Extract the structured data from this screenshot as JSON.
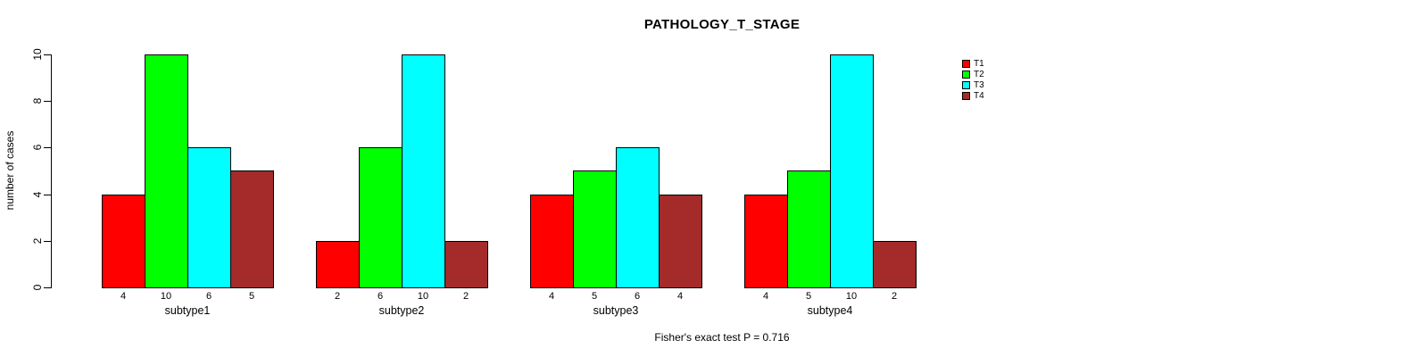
{
  "title": "PATHOLOGY_T_STAGE",
  "footer": "Fisher's exact test P = 0.716",
  "chart_data": {
    "type": "bar",
    "title": "PATHOLOGY_T_STAGE",
    "xlabel": "",
    "ylabel": "number of cases",
    "ylim": [
      0,
      10
    ],
    "yticks": [
      0,
      2,
      4,
      6,
      8,
      10
    ],
    "grid": false,
    "legend_position": "top-right",
    "categories": [
      "subtype1",
      "subtype2",
      "subtype3",
      "subtype4"
    ],
    "series": [
      {
        "name": "T1",
        "color": "#FF0000",
        "values": [
          4,
          2,
          4,
          4
        ]
      },
      {
        "name": "T2",
        "color": "#00FF00",
        "values": [
          10,
          6,
          5,
          5
        ]
      },
      {
        "name": "T3",
        "color": "#00FFFF",
        "values": [
          6,
          10,
          6,
          10
        ]
      },
      {
        "name": "T4",
        "color": "#A52A2A",
        "values": [
          5,
          2,
          4,
          2
        ]
      }
    ],
    "bar_value_labels": [
      [
        4,
        10,
        6,
        5
      ],
      [
        2,
        6,
        10,
        2
      ],
      [
        4,
        5,
        6,
        4
      ],
      [
        4,
        5,
        10,
        2
      ]
    ],
    "annotation": "Fisher's exact test P = 0.716"
  }
}
